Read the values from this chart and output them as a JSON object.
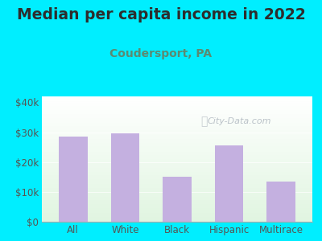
{
  "title": "Median per capita income in 2022",
  "subtitle": "Coudersport, PA",
  "categories": [
    "All",
    "White",
    "Black",
    "Hispanic",
    "Multirace"
  ],
  "values": [
    28500,
    29500,
    15000,
    25500,
    13500
  ],
  "bar_color": "#c4b0e0",
  "title_color": "#2d2d2d",
  "subtitle_color": "#5b8a72",
  "background_outer": "#00eeff",
  "ylim": [
    0,
    42000
  ],
  "yticks": [
    0,
    10000,
    20000,
    30000,
    40000
  ],
  "ytick_labels": [
    "$0",
    "$10k",
    "$20k",
    "$30k",
    "$40k"
  ],
  "watermark": "City-Data.com",
  "tick_color": "#555555",
  "title_fontsize": 13.5,
  "subtitle_fontsize": 10
}
